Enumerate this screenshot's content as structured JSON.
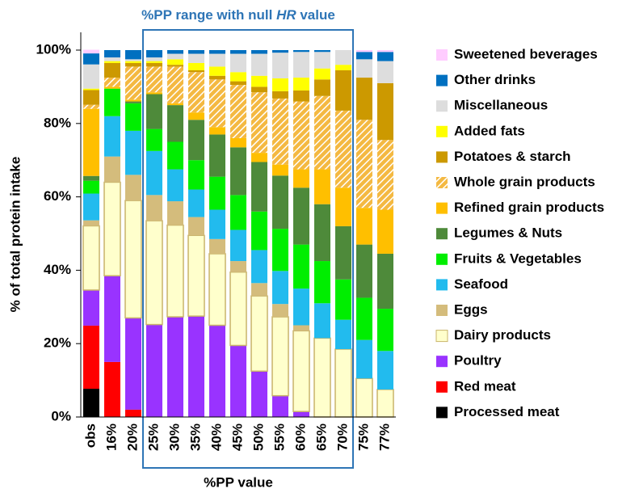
{
  "chart_data": {
    "type": "stacked_bar",
    "annotation": [
      "%PP range with null ",
      "HR",
      " value"
    ],
    "xlabel": "%PP value",
    "ylabel": "% of total protein intake",
    "categories": [
      "obs",
      "16%",
      "20%",
      "25%",
      "30%",
      "35%",
      "40%",
      "45%",
      "50%",
      "55%",
      "60%",
      "65%",
      "70%",
      "75%",
      "77%"
    ],
    "ylim": [
      0,
      100
    ],
    "yticks": [
      {
        "value": 0,
        "label": "0%"
      },
      {
        "value": 20,
        "label": "20%"
      },
      {
        "value": 40,
        "label": "40%"
      },
      {
        "value": 60,
        "label": "60%"
      },
      {
        "value": 80,
        "label": "80%"
      },
      {
        "value": 100,
        "label": "100%"
      }
    ],
    "legend": "right",
    "series": [
      {
        "name": "Processed meat",
        "color": "#000000",
        "values": [
          7.7,
          0,
          0,
          0,
          0,
          0,
          0,
          0,
          0,
          0,
          0,
          0,
          0,
          0,
          0
        ]
      },
      {
        "name": "Red meat",
        "color": "#ff0000",
        "values": [
          17.2,
          15,
          2,
          0,
          0,
          0,
          0,
          0,
          0,
          0,
          0,
          0,
          0,
          0,
          0
        ]
      },
      {
        "name": "Poultry",
        "color": "#9933ff",
        "values": [
          9.7,
          23.5,
          25,
          25.2,
          27.3,
          27.5,
          25,
          19.5,
          12.5,
          5.8,
          1.5,
          0,
          0,
          0,
          0
        ]
      },
      {
        "name": "Dairy products",
        "color": "#ffffcc",
        "edgecolor": "#c9b46a",
        "values": [
          17.5,
          25.5,
          32,
          28.3,
          25,
          22,
          19.5,
          20,
          20.5,
          21.5,
          22,
          21.5,
          18.5,
          10.5,
          7.5
        ]
      },
      {
        "name": "Eggs",
        "color": "#d4bc7c",
        "values": [
          1.5,
          7,
          7,
          7,
          6.5,
          5,
          4,
          3,
          3.5,
          3.5,
          1.5,
          0,
          0,
          0,
          0
        ]
      },
      {
        "name": "Seafood",
        "color": "#22bbee",
        "values": [
          7.3,
          11,
          12,
          12,
          8.7,
          7.5,
          8,
          8.5,
          9,
          9,
          10,
          9.5,
          8,
          10.5,
          10.5
        ]
      },
      {
        "name": "Fruits & Vegetables",
        "color": "#00ee00",
        "values": [
          3.5,
          7.5,
          7.5,
          6,
          7.5,
          8,
          9,
          9.5,
          10.5,
          11.5,
          12,
          11.5,
          11,
          11.5,
          11.5
        ]
      },
      {
        "name": "Legumes & Nuts",
        "color": "#4e8a3a",
        "values": [
          1.3,
          0,
          0.5,
          9.5,
          10,
          11,
          11.5,
          13,
          13.5,
          14.5,
          15.5,
          15.5,
          14.5,
          14.5,
          15
        ]
      },
      {
        "name": "Refined grain products",
        "color": "#ffbf00",
        "values": [
          18.3,
          0.5,
          0.5,
          0.5,
          0.5,
          2,
          2,
          2.5,
          2.5,
          3,
          5,
          9.5,
          10.5,
          10,
          12
        ]
      },
      {
        "name": "Whole grain products",
        "color": "#f4b942",
        "hatch": true,
        "values": [
          1.1,
          2.5,
          9,
          7,
          10,
          11,
          13,
          14.5,
          16.5,
          18,
          18.5,
          20,
          21,
          24,
          19
        ]
      },
      {
        "name": "Potatoes & starch",
        "color": "#cc9900",
        "values": [
          4,
          4,
          1,
          1,
          0.5,
          0.5,
          1,
          1,
          1.5,
          2,
          3,
          4.5,
          11,
          11.5,
          15.5
        ]
      },
      {
        "name": "Added fats",
        "color": "#ffff00",
        "values": [
          0.4,
          0.5,
          0.5,
          0.5,
          1.5,
          2,
          2.5,
          2.5,
          3,
          3.5,
          3.5,
          3,
          1.5,
          0,
          0
        ]
      },
      {
        "name": "Miscellaneous",
        "color": "#dddddd",
        "values": [
          6.6,
          1,
          0.5,
          1,
          1.5,
          2.5,
          3.5,
          5,
          6,
          7,
          7,
          4.5,
          4,
          5,
          6
        ]
      },
      {
        "name": "Other drinks",
        "color": "#0070c0",
        "values": [
          3,
          2,
          2.5,
          2,
          1,
          1,
          1,
          1,
          1,
          0.7,
          0.5,
          0.5,
          0,
          2,
          2.5
        ]
      },
      {
        "name": "Sweetened beverages",
        "color": "#ffccff",
        "values": [
          1,
          0,
          0,
          0,
          0,
          0,
          0,
          0,
          0,
          0,
          0,
          0,
          0,
          0.5,
          0.5
        ]
      }
    ]
  }
}
